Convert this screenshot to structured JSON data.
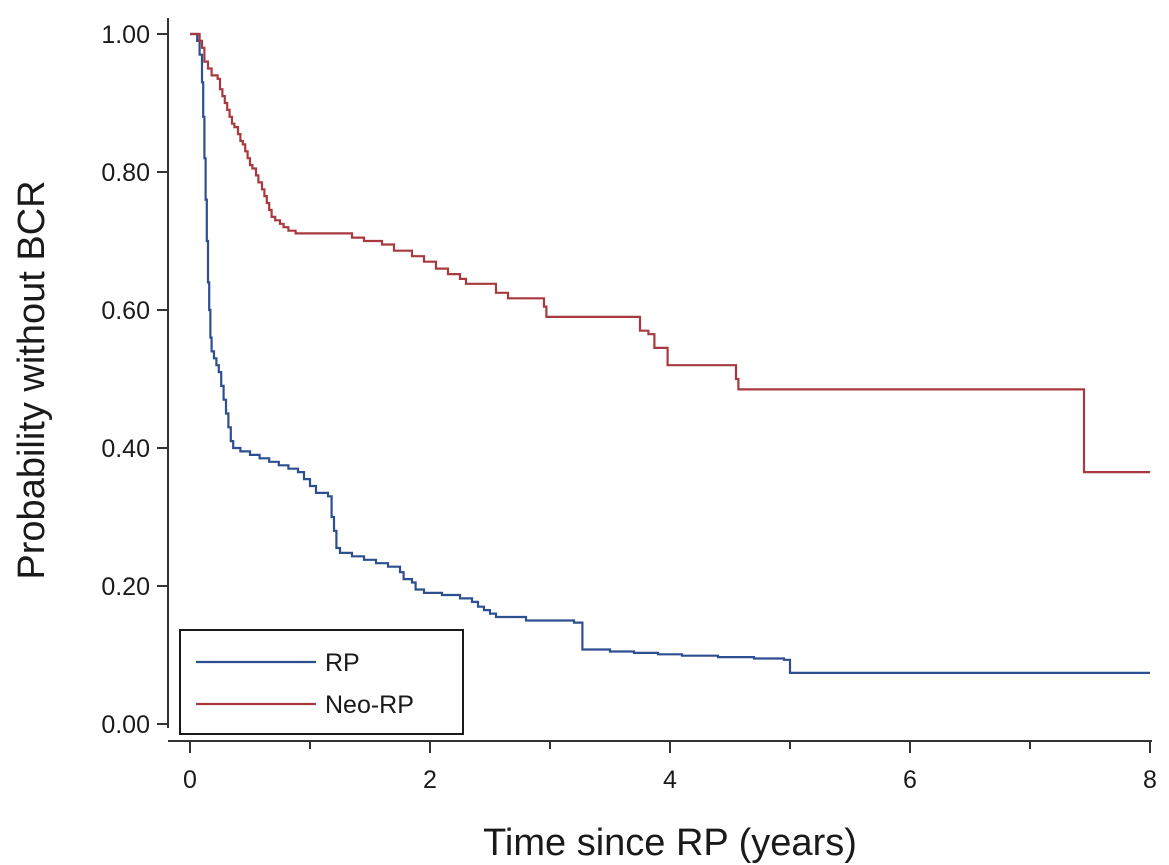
{
  "chart_data": {
    "type": "line",
    "title": "",
    "xlabel": "Time since RP (years)",
    "ylabel": "Probability without BCR",
    "xlim": [
      0,
      8
    ],
    "ylim": [
      0,
      1
    ],
    "x_ticks": [
      0,
      2,
      4,
      6,
      8
    ],
    "x_minor_ticks": [
      1,
      3,
      5,
      7
    ],
    "y_ticks": [
      0,
      0.2,
      0.4,
      0.6,
      0.8,
      1.0
    ],
    "y_tick_labels": [
      "0.00",
      "0.20",
      "0.40",
      "0.60",
      "0.80",
      "1.00"
    ],
    "grid": false,
    "legend": {
      "position": "bottom-left",
      "entries": [
        "RP",
        "Neo-RP"
      ]
    },
    "series": [
      {
        "name": "RP",
        "color": "#2e4f8f",
        "step": true,
        "points": [
          [
            0,
            1.0
          ],
          [
            0.06,
            0.99
          ],
          [
            0.08,
            0.97
          ],
          [
            0.1,
            0.93
          ],
          [
            0.11,
            0.88
          ],
          [
            0.12,
            0.82
          ],
          [
            0.13,
            0.76
          ],
          [
            0.14,
            0.7
          ],
          [
            0.15,
            0.64
          ],
          [
            0.16,
            0.6
          ],
          [
            0.17,
            0.56
          ],
          [
            0.18,
            0.54
          ],
          [
            0.2,
            0.53
          ],
          [
            0.22,
            0.52
          ],
          [
            0.24,
            0.51
          ],
          [
            0.26,
            0.49
          ],
          [
            0.28,
            0.47
          ],
          [
            0.3,
            0.45
          ],
          [
            0.32,
            0.43
          ],
          [
            0.34,
            0.41
          ],
          [
            0.36,
            0.4
          ],
          [
            0.42,
            0.395
          ],
          [
            0.5,
            0.39
          ],
          [
            0.58,
            0.385
          ],
          [
            0.66,
            0.38
          ],
          [
            0.74,
            0.375
          ],
          [
            0.82,
            0.37
          ],
          [
            0.9,
            0.365
          ],
          [
            0.95,
            0.355
          ],
          [
            1.0,
            0.345
          ],
          [
            1.05,
            0.335
          ],
          [
            1.15,
            0.33
          ],
          [
            1.18,
            0.3
          ],
          [
            1.2,
            0.28
          ],
          [
            1.22,
            0.255
          ],
          [
            1.25,
            0.248
          ],
          [
            1.35,
            0.243
          ],
          [
            1.45,
            0.238
          ],
          [
            1.55,
            0.233
          ],
          [
            1.65,
            0.228
          ],
          [
            1.75,
            0.22
          ],
          [
            1.78,
            0.21
          ],
          [
            1.85,
            0.205
          ],
          [
            1.88,
            0.195
          ],
          [
            1.95,
            0.19
          ],
          [
            2.1,
            0.187
          ],
          [
            2.25,
            0.182
          ],
          [
            2.35,
            0.177
          ],
          [
            2.4,
            0.17
          ],
          [
            2.45,
            0.165
          ],
          [
            2.5,
            0.16
          ],
          [
            2.55,
            0.155
          ],
          [
            2.8,
            0.15
          ],
          [
            3.2,
            0.147
          ],
          [
            3.27,
            0.108
          ],
          [
            3.5,
            0.105
          ],
          [
            3.7,
            0.103
          ],
          [
            3.9,
            0.101
          ],
          [
            4.1,
            0.099
          ],
          [
            4.4,
            0.097
          ],
          [
            4.7,
            0.095
          ],
          [
            4.95,
            0.093
          ],
          [
            5.0,
            0.074
          ],
          [
            8.0,
            0.074
          ]
        ]
      },
      {
        "name": "Neo-RP",
        "color": "#a8393f",
        "step": true,
        "points": [
          [
            0,
            1.0
          ],
          [
            0.08,
            0.99
          ],
          [
            0.1,
            0.98
          ],
          [
            0.12,
            0.96
          ],
          [
            0.15,
            0.95
          ],
          [
            0.18,
            0.94
          ],
          [
            0.23,
            0.935
          ],
          [
            0.25,
            0.92
          ],
          [
            0.27,
            0.91
          ],
          [
            0.29,
            0.9
          ],
          [
            0.31,
            0.89
          ],
          [
            0.33,
            0.88
          ],
          [
            0.35,
            0.87
          ],
          [
            0.37,
            0.865
          ],
          [
            0.4,
            0.855
          ],
          [
            0.42,
            0.845
          ],
          [
            0.44,
            0.84
          ],
          [
            0.46,
            0.83
          ],
          [
            0.48,
            0.82
          ],
          [
            0.5,
            0.81
          ],
          [
            0.52,
            0.805
          ],
          [
            0.55,
            0.795
          ],
          [
            0.57,
            0.785
          ],
          [
            0.6,
            0.775
          ],
          [
            0.62,
            0.765
          ],
          [
            0.64,
            0.755
          ],
          [
            0.66,
            0.745
          ],
          [
            0.68,
            0.735
          ],
          [
            0.71,
            0.73
          ],
          [
            0.75,
            0.725
          ],
          [
            0.78,
            0.72
          ],
          [
            0.82,
            0.715
          ],
          [
            0.88,
            0.711
          ],
          [
            1.35,
            0.705
          ],
          [
            1.45,
            0.7
          ],
          [
            1.6,
            0.695
          ],
          [
            1.7,
            0.686
          ],
          [
            1.85,
            0.678
          ],
          [
            1.95,
            0.67
          ],
          [
            2.05,
            0.66
          ],
          [
            2.15,
            0.652
          ],
          [
            2.25,
            0.645
          ],
          [
            2.3,
            0.638
          ],
          [
            2.55,
            0.625
          ],
          [
            2.65,
            0.617
          ],
          [
            2.95,
            0.605
          ],
          [
            2.97,
            0.59
          ],
          [
            3.75,
            0.57
          ],
          [
            3.82,
            0.565
          ],
          [
            3.87,
            0.545
          ],
          [
            3.98,
            0.52
          ],
          [
            4.55,
            0.5
          ],
          [
            4.57,
            0.485
          ],
          [
            7.45,
            0.365
          ],
          [
            8.0,
            0.365
          ]
        ]
      }
    ]
  }
}
